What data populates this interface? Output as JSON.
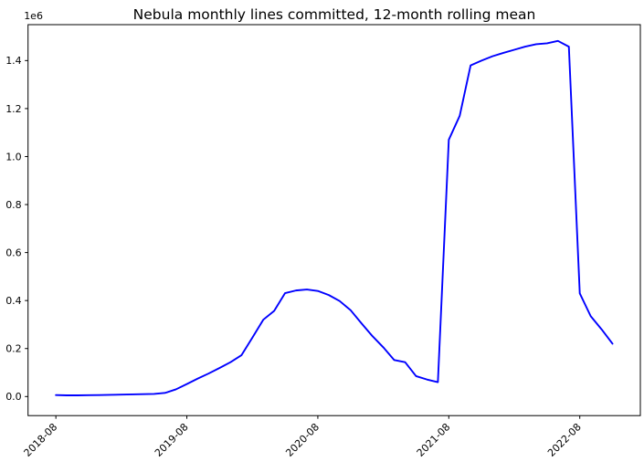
{
  "figure": {
    "background": "#ffffff"
  },
  "chart_data": {
    "type": "line",
    "title": "Nebula monthly lines committed, 12-month rolling mean",
    "xlabel": "",
    "ylabel": "",
    "grid": false,
    "legend_position": "none",
    "axis_color": "#000000",
    "text_color": "#000000",
    "y_scale_offset_label": "1e6",
    "x_tick_labels": [
      "2018-08",
      "2019-08",
      "2020-08",
      "2021-08",
      "2022-08"
    ],
    "y_ticks": [
      0,
      200000,
      400000,
      600000,
      800000,
      1000000,
      1200000,
      1400000
    ],
    "y_tick_labels": [
      "0.0",
      "0.2",
      "0.4",
      "0.6",
      "0.8",
      "1.0",
      "1.2",
      "1.4"
    ],
    "xlim_months_from_first": [
      -2.55,
      53.55
    ],
    "ylim": [
      -79500,
      1549700
    ],
    "x": [
      "2018-08",
      "2018-09",
      "2018-10",
      "2018-11",
      "2018-12",
      "2019-01",
      "2019-02",
      "2019-03",
      "2019-04",
      "2019-05",
      "2019-06",
      "2019-07",
      "2019-08",
      "2019-09",
      "2019-10",
      "2019-11",
      "2019-12",
      "2020-01",
      "2020-02",
      "2020-03",
      "2020-04",
      "2020-05",
      "2020-06",
      "2020-07",
      "2020-08",
      "2020-09",
      "2020-10",
      "2020-11",
      "2020-12",
      "2021-01",
      "2021-02",
      "2021-03",
      "2021-04",
      "2021-05",
      "2021-06",
      "2021-07",
      "2021-08",
      "2021-09",
      "2021-10",
      "2021-11",
      "2021-12",
      "2022-01",
      "2022-02",
      "2022-03",
      "2022-04",
      "2022-05",
      "2022-06",
      "2022-07",
      "2022-08",
      "2022-09",
      "2022-10",
      "2022-11"
    ],
    "series": [
      {
        "name": "12-month rolling mean",
        "color": "#0000ff",
        "values": [
          6000,
          5000,
          5000,
          5500,
          6000,
          7000,
          8000,
          9000,
          10000,
          11000,
          15000,
          30000,
          52000,
          75000,
          96000,
          119000,
          143000,
          172000,
          245000,
          320000,
          357000,
          431000,
          442000,
          446000,
          440000,
          423000,
          398000,
          360000,
          305000,
          252000,
          205000,
          152000,
          143000,
          85000,
          71000,
          60000,
          1070000,
          1170000,
          1380000,
          1400000,
          1418000,
          1432000,
          1445000,
          1458000,
          1468000,
          1472000,
          1482000,
          1458000,
          430000,
          335000,
          280000,
          220000
        ]
      }
    ]
  }
}
